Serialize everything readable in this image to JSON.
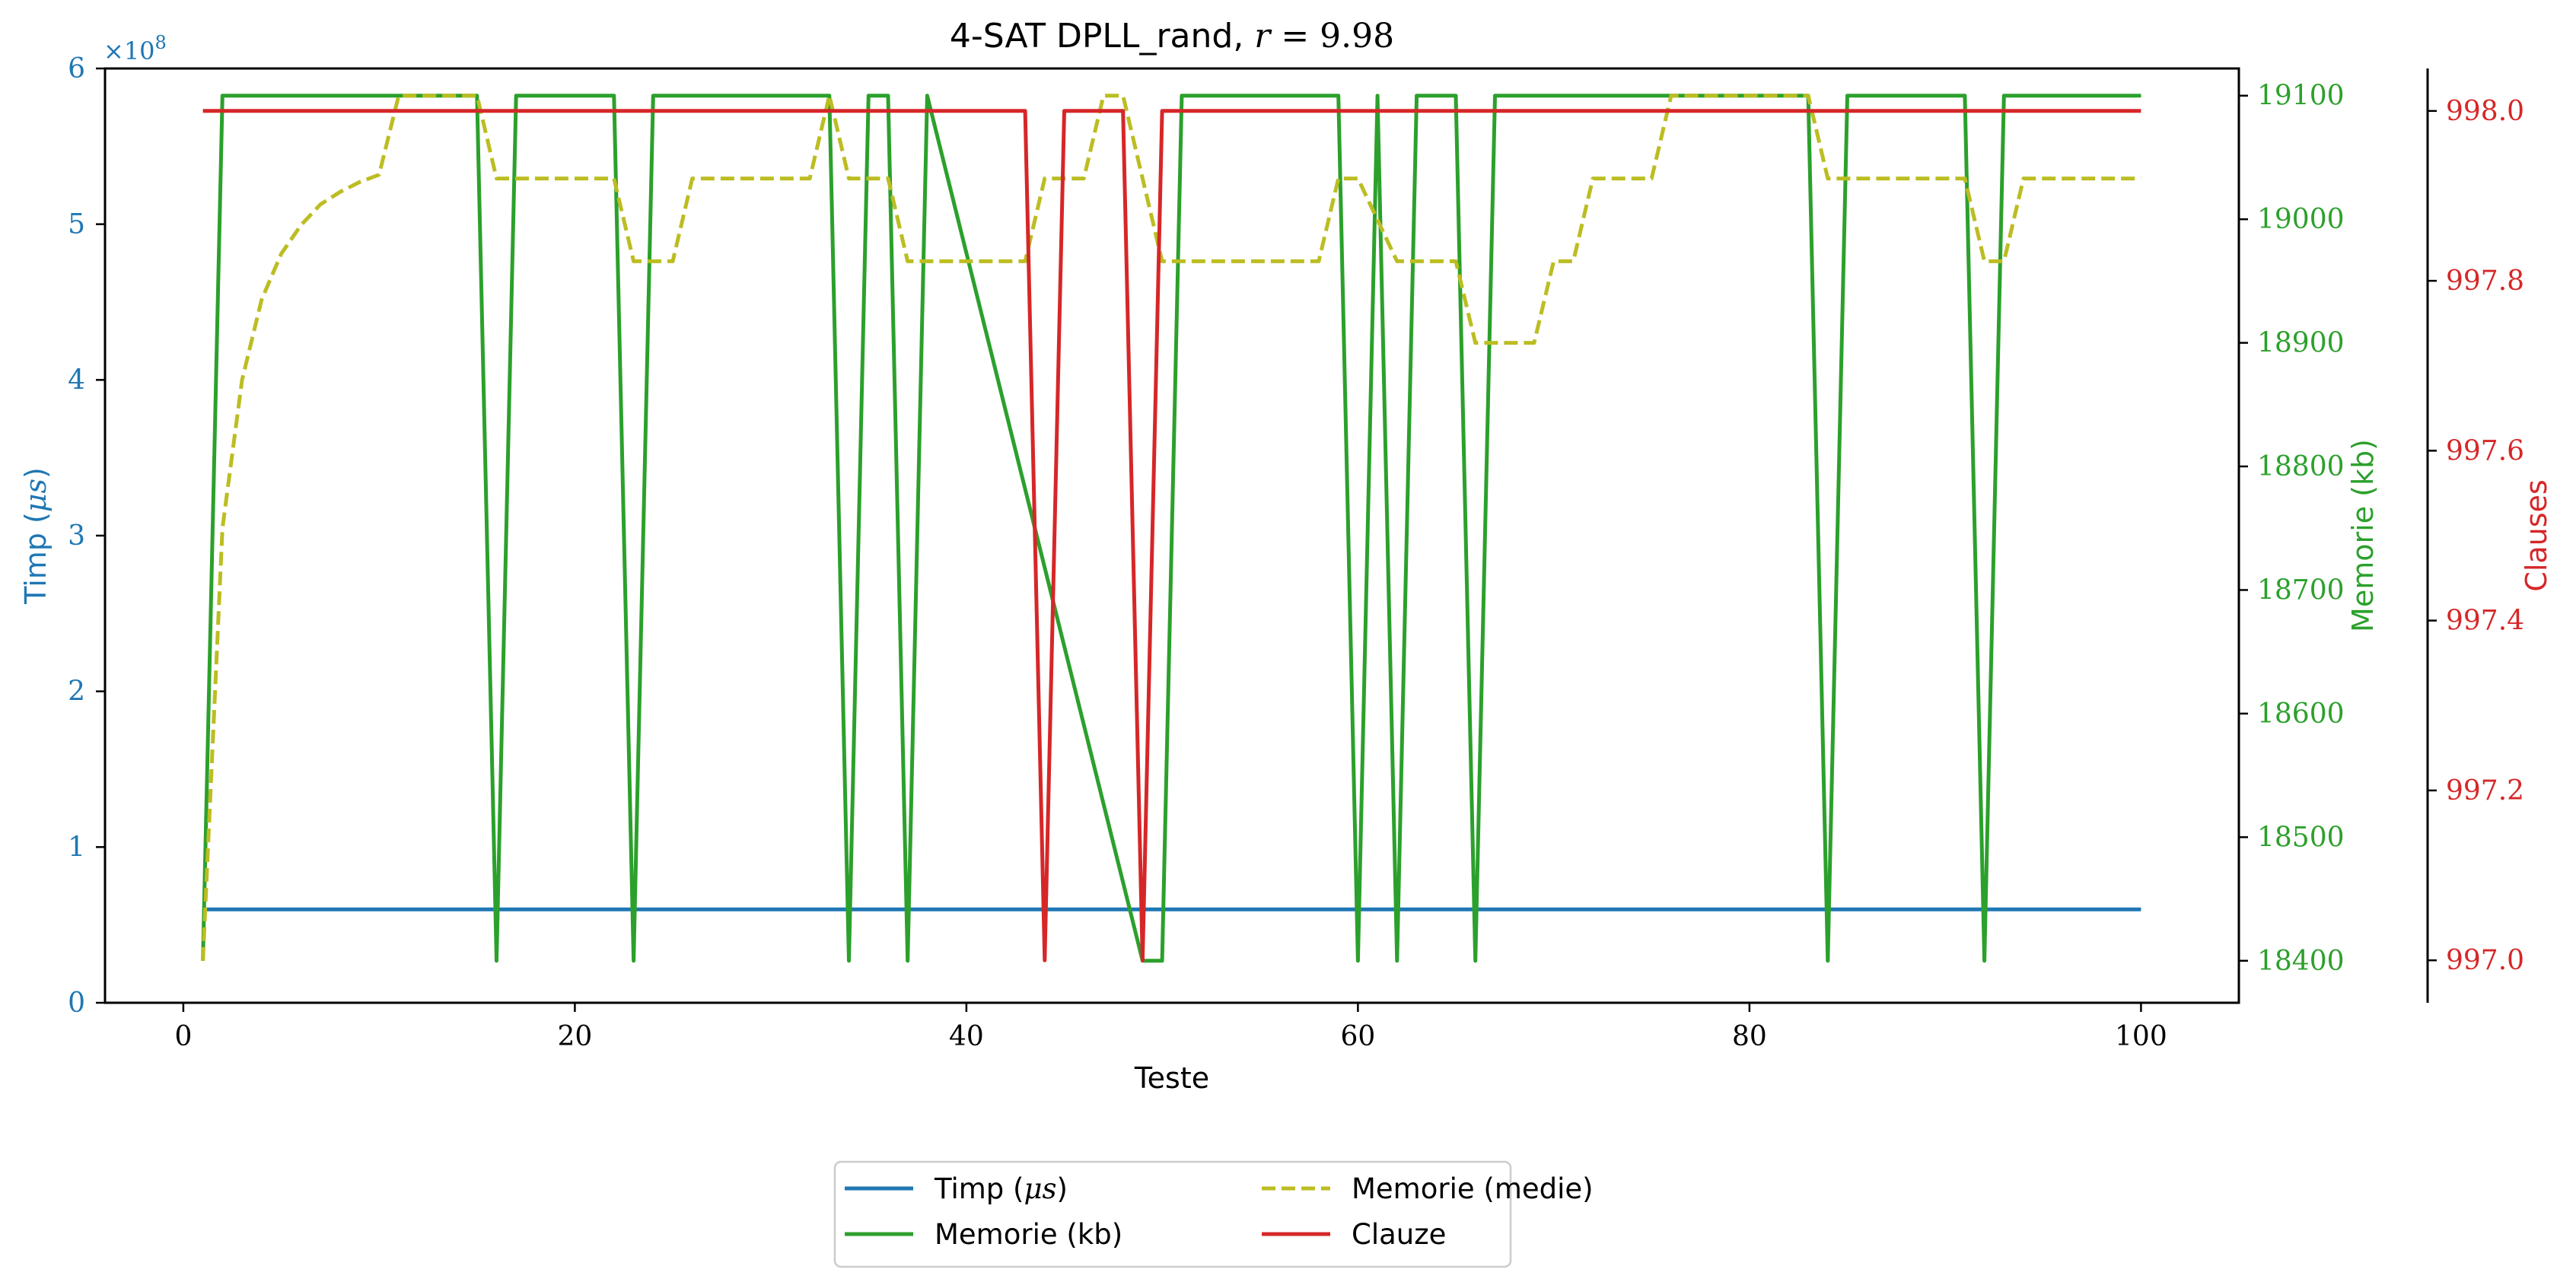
{
  "chart_data": {
    "type": "line",
    "title": "4-SAT DPLL_rand, r = 9.98",
    "title_parts": {
      "prefix": "4-SAT DPLL_rand, ",
      "var": "r",
      "eq": " = 9.98"
    },
    "xlabel": "Teste",
    "xlim": [
      -4,
      105
    ],
    "xticks": [
      0,
      20,
      40,
      60,
      80,
      100
    ],
    "axes": {
      "left": {
        "label": "Timp (μs)",
        "label_main": "Timp (",
        "label_sym": "μs",
        "label_end": ")",
        "ylim": [
          0,
          6
        ],
        "ticks": [
          0,
          1,
          2,
          3,
          4,
          5,
          6
        ],
        "multiplier": "×10",
        "multiplier_exp": "8",
        "color": "#1f77b4"
      },
      "right1": {
        "label": "Memorie (kb)",
        "ylim": [
          18366,
          19122
        ],
        "ticks": [
          18400,
          18500,
          18600,
          18700,
          18800,
          18900,
          19000,
          19100
        ],
        "color": "#2ca02c"
      },
      "right2": {
        "label": "Clauses",
        "ylim": [
          996.95,
          998.05
        ],
        "ticks": [
          "997.0",
          "997.2",
          "997.4",
          "997.6",
          "997.8",
          "998.0"
        ],
        "color": "#d62728"
      }
    },
    "grid": false,
    "legend_position": "bottom-center",
    "legend": [
      {
        "label": "Timp (μs)",
        "main": "Timp (",
        "sym": "μs",
        "end": ")",
        "style": "solid",
        "color": "#1f77b4"
      },
      {
        "label": "Memorie (medie)",
        "main": "Memorie (medie)",
        "sym": "",
        "end": "",
        "style": "dashed",
        "color": "#bcbd22"
      },
      {
        "label": "Memorie (kb)",
        "main": "Memorie (kb)",
        "sym": "",
        "end": "",
        "style": "solid",
        "color": "#2ca02c"
      },
      {
        "label": "Clauze",
        "main": "Clauze",
        "sym": "",
        "end": "",
        "style": "solid",
        "color": "#d62728"
      }
    ],
    "series": [
      {
        "name": "Timp (μs)",
        "axis": "left",
        "color": "#1f77b4",
        "style": "solid",
        "x": [
          1,
          100
        ],
        "y": [
          0.6,
          0.6
        ]
      },
      {
        "name": "Memorie (kb)",
        "axis": "right1",
        "color": "#2ca02c",
        "style": "solid",
        "x": [
          1,
          2,
          15,
          16,
          17,
          22,
          23,
          24,
          33,
          34,
          35,
          36,
          37,
          38,
          49,
          50,
          51,
          59,
          60,
          61,
          62,
          63,
          65,
          66,
          67,
          83,
          84,
          85,
          91,
          92,
          93,
          100
        ],
        "y": [
          18400,
          19100,
          19100,
          18400,
          19100,
          19100,
          18400,
          19100,
          19100,
          18400,
          19100,
          19100,
          18400,
          19100,
          18400,
          18400,
          19100,
          19100,
          18400,
          19100,
          18400,
          19100,
          19100,
          18400,
          19100,
          19100,
          18400,
          19100,
          19100,
          18400,
          19100,
          19100
        ]
      },
      {
        "name": "Memorie (medie)",
        "axis": "right1",
        "color": "#bcbd22",
        "style": "dashed",
        "x": [
          1,
          2,
          3,
          4,
          5,
          6,
          7,
          8,
          9,
          10,
          11,
          15,
          16,
          22,
          23,
          25,
          26,
          32,
          33,
          34,
          36,
          37,
          43,
          44,
          46,
          47,
          48,
          50,
          58,
          59,
          60,
          62,
          65,
          66,
          69,
          70,
          71,
          72,
          75,
          76,
          83,
          84,
          91,
          92,
          93,
          94,
          100
        ],
        "y": [
          18400,
          18750,
          18870,
          18935,
          18972,
          18995,
          19012,
          19022,
          19030,
          19036,
          19100,
          19100,
          19033,
          19033,
          18966,
          18966,
          19033,
          19033,
          19100,
          19033,
          19033,
          18966,
          18966,
          19033,
          19033,
          19100,
          19100,
          18966,
          18966,
          19033,
          19033,
          18966,
          18966,
          18900,
          18900,
          18966,
          18966,
          19033,
          19033,
          19100,
          19100,
          19033,
          19033,
          18966,
          18966,
          19033,
          19033
        ]
      },
      {
        "name": "Clauze",
        "axis": "right2",
        "color": "#d62728",
        "style": "solid",
        "x": [
          1,
          43,
          44,
          45,
          48,
          49,
          50,
          100
        ],
        "y": [
          998,
          998,
          997,
          998,
          998,
          997,
          998,
          998
        ]
      }
    ]
  }
}
